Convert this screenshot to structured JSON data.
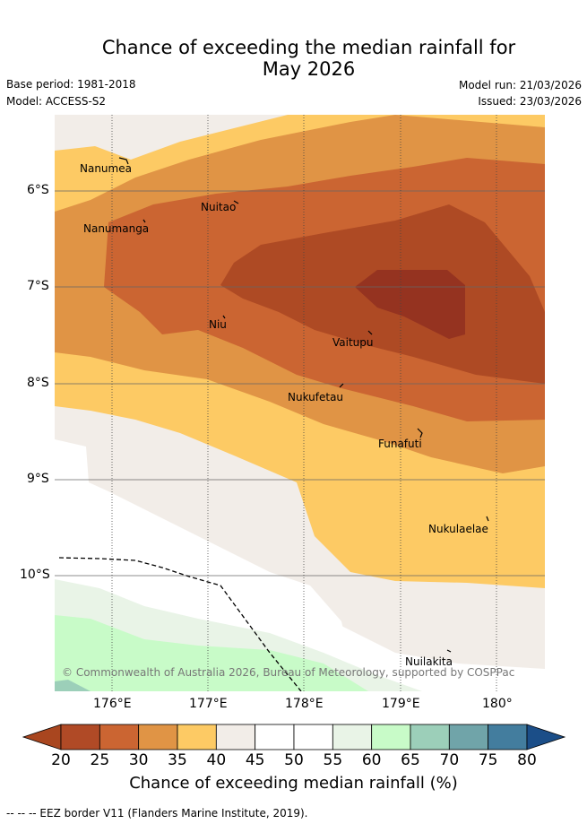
{
  "title_line1": "Chance of exceeding the median rainfall for",
  "title_line2": "May 2026",
  "meta": {
    "base_period": "Base period: 1981-2018",
    "model": "Model: ACCESS-S2",
    "model_run": "Model run: 21/03/2026",
    "issued": "Issued: 23/03/2026"
  },
  "map": {
    "lat_ticks": [
      "6°S",
      "7°S",
      "8°S",
      "9°S",
      "10°S"
    ],
    "lon_ticks": [
      "176°E",
      "177°E",
      "178°E",
      "179°E",
      "180°"
    ],
    "places": {
      "nanumea": "Nanumea",
      "nuitao": "Nuitao",
      "nanumanga": "Nanumanga",
      "niu": "Niu",
      "vaitupu": "Vaitupu",
      "nukufetau": "Nukufetau",
      "funafuti": "Funafuti",
      "nukulaelae": "Nukulaelae",
      "nuilakita": "Nuilakita"
    },
    "copyright": "© Commonwealth of Australia 2026, Bureau of Meteorology, supported by COSPPac"
  },
  "colorbar": {
    "ticks": [
      "20",
      "25",
      "30",
      "35",
      "40",
      "45",
      "50",
      "55",
      "60",
      "65",
      "70",
      "75",
      "80"
    ],
    "colors": [
      "#a9461f",
      "#b04a26",
      "#cb6532",
      "#e09445",
      "#fdca64",
      "#f2ede8",
      "#ffffff",
      "#ffffff",
      "#e9f4e7",
      "#c8fbc8",
      "#9ccfb9",
      "#70a4a9",
      "#437d9e",
      "#1b4e88"
    ],
    "title": "Chance of exceeding median rainfall (%)"
  },
  "footer": "--  --  -- EEZ border V11 (Flanders Marine Institute, 2019)."
}
